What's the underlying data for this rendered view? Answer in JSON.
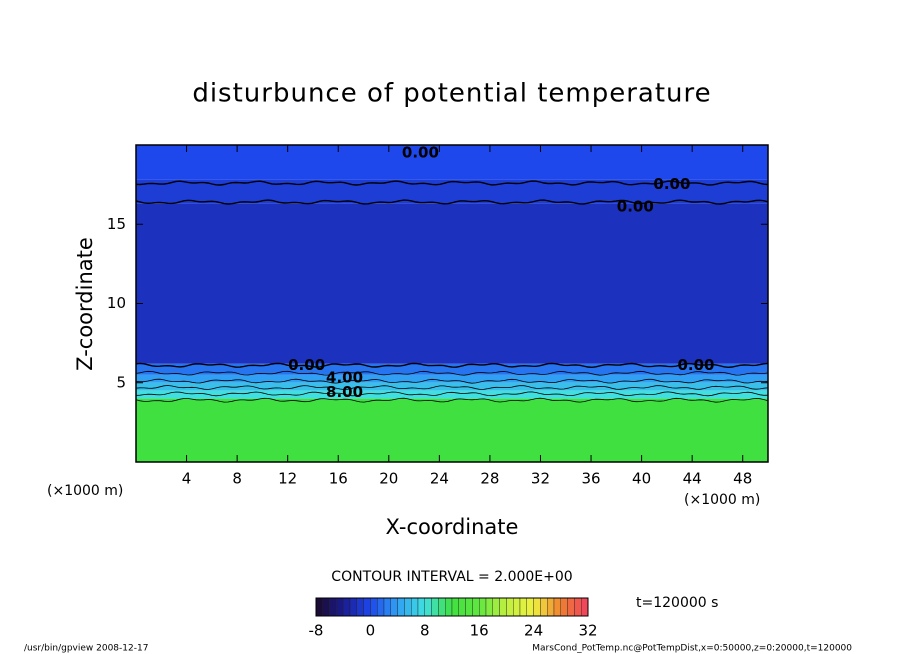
{
  "chart_data": {
    "type": "contour",
    "title": "disturbunce of potential temperature",
    "xlabel": "X-coordinate",
    "ylabel": "Z-coordinate",
    "x_unit_label": "(×1000 m)",
    "y_unit_label": "(×1000 m)",
    "xlim": [
      0,
      50
    ],
    "ylim": [
      0,
      20
    ],
    "xticks": [
      4,
      8,
      12,
      16,
      20,
      24,
      28,
      32,
      36,
      40,
      44,
      48
    ],
    "yticks": [
      5,
      10,
      15
    ],
    "layers": [
      {
        "z": [
          0,
          4
        ],
        "value": 12
      },
      {
        "z": [
          4,
          4.5
        ],
        "value": 8
      },
      {
        "z": [
          4.5,
          5
        ],
        "value": 6
      },
      {
        "z": [
          5,
          5.5
        ],
        "value": 4
      },
      {
        "z": [
          5.5,
          6.2
        ],
        "value": 2
      },
      {
        "z": [
          6.2,
          16.3
        ],
        "value": -2
      },
      {
        "z": [
          16.3,
          17.8
        ],
        "value": -1
      },
      {
        "z": [
          17.8,
          20
        ],
        "value": 0
      }
    ],
    "contours": [
      {
        "level": 10,
        "z": 3.9
      },
      {
        "level": 8,
        "z": 4.3
      },
      {
        "level": 6,
        "z": 4.7
      },
      {
        "level": 4,
        "z": 5.1
      },
      {
        "level": 2,
        "z": 5.6
      },
      {
        "level": 0,
        "z": 6.1
      },
      {
        "level": 0,
        "z": 16.4
      },
      {
        "level": 0,
        "z": 17.6
      }
    ],
    "contour_labels": [
      {
        "label": "0.00",
        "x": 13.5,
        "z": 6.1
      },
      {
        "label": "4.00",
        "x": 16.5,
        "z": 5.3
      },
      {
        "label": "8.00",
        "x": 16.5,
        "z": 4.4
      },
      {
        "label": "0.00",
        "x": 44.3,
        "z": 6.1
      },
      {
        "label": "0.00",
        "x": 22.5,
        "z": 19.5
      },
      {
        "label": "0.00",
        "x": 42.4,
        "z": 17.5
      },
      {
        "label": "0.00",
        "x": 39.5,
        "z": 16.1
      }
    ],
    "contour_interval": "CONTOUR INTERVAL = 2.000E+00",
    "time_label": "t=120000 s",
    "colormap": [
      "#1a0a2a",
      "#1a1a90",
      "#1e48ec",
      "#30a0f4",
      "#40e0e0",
      "#40e040",
      "#60e840",
      "#c0f040",
      "#f0f040",
      "#f08030",
      "#f04060"
    ],
    "clim": [
      -8,
      32
    ],
    "cticks": [
      -8,
      0,
      8,
      16,
      24,
      32
    ],
    "footer_left": "/usr/bin/gpview  2008-12-17",
    "footer_right": "MarsCond_PotTemp.nc@PotTempDist,x=0:50000,z=0:20000,t=120000"
  }
}
